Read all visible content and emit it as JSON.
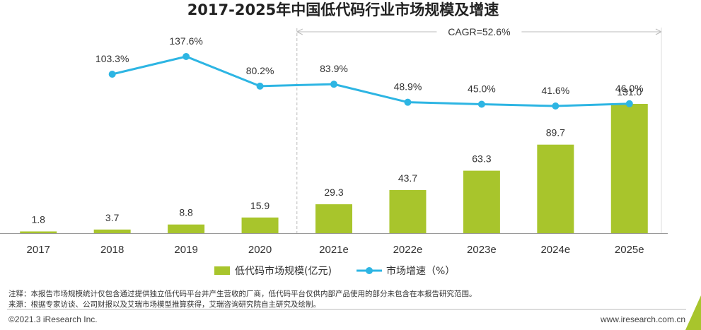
{
  "chart_data": {
    "type": "bar",
    "title": "2017-2025年中国低代码行业市场规模及增速",
    "categories": [
      "2017",
      "2018",
      "2019",
      "2020",
      "2021e",
      "2022e",
      "2023e",
      "2024e",
      "2025e"
    ],
    "series": [
      {
        "name": "低代码市场规模(亿元)",
        "kind": "bar",
        "color": "#a8c52c",
        "values": [
          1.8,
          3.7,
          8.8,
          15.9,
          29.3,
          43.7,
          63.3,
          89.7,
          131.0
        ],
        "labels": [
          "1.8",
          "3.7",
          "8.8",
          "15.9",
          "29.3",
          "43.7",
          "63.3",
          "89.7",
          "131.0"
        ]
      },
      {
        "name": "市场增速（%）",
        "kind": "line",
        "color": "#2db5e3",
        "values": [
          null,
          103.3,
          137.6,
          80.2,
          83.9,
          48.9,
          45.0,
          41.6,
          46.0
        ],
        "labels": [
          "",
          "103.3%",
          "137.6%",
          "80.2%",
          "83.9%",
          "48.9%",
          "45.0%",
          "41.6%",
          "46.0%"
        ]
      }
    ],
    "bar_ylim": [
      0,
      140
    ],
    "line_ylim": [
      0,
      160
    ],
    "annotation": {
      "text": "CAGR=52.6%",
      "from": "2021e",
      "to": "2025e"
    },
    "legend": "bottom-center"
  },
  "footer": {
    "note": "注释：本报告市场规模统计仅包含通过提供独立低代码平台并产生营收的厂商，低代码平台仅供内部产品使用的部分未包含在本报告研究范围。",
    "source": "来源：根据专家访谈、公司财报以及艾瑞市场模型推算获得，艾瑞咨询研究院自主研究及绘制。",
    "copyright": "©2021.3 iResearch Inc.",
    "website": "www.iresearch.com.cn"
  },
  "colors": {
    "bar": "#a8c52c",
    "line": "#2db5e3",
    "axis": "#999999",
    "divider": "#bbbbbb"
  }
}
